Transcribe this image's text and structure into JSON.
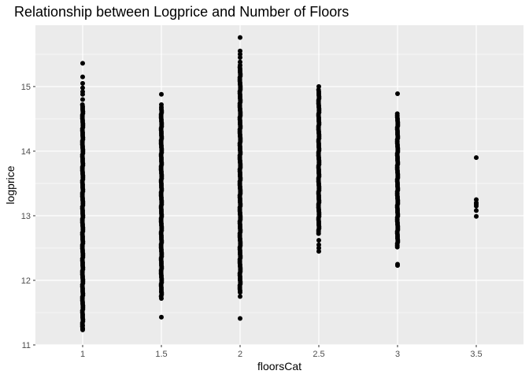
{
  "chart_data": {
    "type": "scatter",
    "title": "Relationship between Logprice and Number of Floors",
    "xlabel": "floorsCat",
    "ylabel": "logprice",
    "x_ticks": [
      "1",
      "1.5",
      "2",
      "2.5",
      "3",
      "3.5"
    ],
    "y_ticks": [
      "11",
      "12",
      "13",
      "14",
      "15"
    ],
    "xlim": [
      0.7,
      3.8
    ],
    "ylim": [
      11.0,
      15.95
    ],
    "grid": true,
    "background": "#ebebeb",
    "point_color": "#000000",
    "series": [
      {
        "category": 1,
        "range": [
          11.22,
          14.72
        ],
        "outliers": [
          15.36,
          15.15,
          15.05,
          14.98,
          14.92,
          14.88,
          14.8,
          11.3,
          11.25
        ]
      },
      {
        "category": 1.5,
        "range": [
          11.75,
          14.65
        ],
        "outliers": [
          14.88,
          14.72,
          14.68,
          11.82,
          11.72,
          11.43
        ]
      },
      {
        "category": 2,
        "range": [
          11.8,
          15.3
        ],
        "outliers": [
          15.76,
          15.55,
          15.5,
          15.45,
          15.38,
          15.33,
          11.75,
          11.41
        ]
      },
      {
        "category": 2.5,
        "range": [
          12.7,
          14.95
        ],
        "outliers": [
          15.0,
          12.62,
          12.55,
          12.5,
          12.45
        ]
      },
      {
        "category": 3,
        "range": [
          12.5,
          14.58
        ],
        "outliers": [
          14.89,
          12.25,
          12.23
        ]
      },
      {
        "category": 3.5,
        "points": [
          13.9,
          13.25,
          13.2,
          13.18,
          13.15,
          13.08,
          12.99
        ]
      }
    ]
  }
}
